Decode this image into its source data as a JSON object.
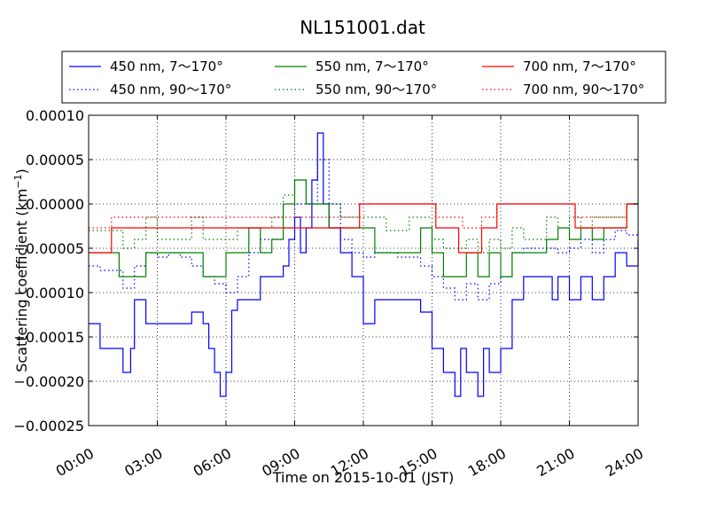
{
  "chart_data": {
    "type": "line",
    "title": "NL151001.dat",
    "xlabel": "Time on 2015-10-01 (JST)",
    "ylabel": "Scattering coefficient (km",
    "ylabel_sup": "−1",
    "ylabel_tail": ")",
    "xlim": [
      "00:00",
      "24:00"
    ],
    "ylim": [
      -0.00025,
      0.0001
    ],
    "grid": true,
    "legend_position": "top",
    "x_ticks": [
      "00:00",
      "03:00",
      "06:00",
      "09:00",
      "12:00",
      "15:00",
      "18:00",
      "21:00",
      "24:00"
    ],
    "y_ticks": [
      "0.00010",
      "0.00005",
      "0.00000",
      "−0.00005",
      "−0.00010",
      "−0.00015",
      "−0.00020",
      "−0.00025"
    ],
    "y_tick_values": [
      0.0001,
      5e-05,
      0.0,
      -5e-05,
      -0.0001,
      -0.00015,
      -0.0002,
      -0.00025
    ],
    "series": [
      {
        "name": "450 nm, 7～170°",
        "color": "#0000ff",
        "style": "solid",
        "points": [
          [
            "00:00",
            -0.000135
          ],
          [
            "00:30",
            -0.000163
          ],
          [
            "01:00",
            -0.000163
          ],
          [
            "01:30",
            -0.00019
          ],
          [
            "01:50",
            -0.000163
          ],
          [
            "02:00",
            -0.000108
          ],
          [
            "02:30",
            -0.000135
          ],
          [
            "03:00",
            -0.000135
          ],
          [
            "03:30",
            -0.000135
          ],
          [
            "04:00",
            -0.000135
          ],
          [
            "04:30",
            -0.000122
          ],
          [
            "05:00",
            -0.000135
          ],
          [
            "05:15",
            -0.000163
          ],
          [
            "05:30",
            -0.00019
          ],
          [
            "05:45",
            -0.000217
          ],
          [
            "06:00",
            -0.00019
          ],
          [
            "06:15",
            -0.00012
          ],
          [
            "06:30",
            -0.000108
          ],
          [
            "07:00",
            -0.000108
          ],
          [
            "07:30",
            -8.2e-05
          ],
          [
            "08:00",
            -8.2e-05
          ],
          [
            "08:30",
            -7e-05
          ],
          [
            "08:45",
            -4e-05
          ],
          [
            "09:00",
            -1.5e-05
          ],
          [
            "09:15",
            -5.5e-05
          ],
          [
            "09:30",
            -2.7e-05
          ],
          [
            "09:45",
            2.7e-05
          ],
          [
            "10:00",
            8e-05
          ],
          [
            "10:15",
            0.0
          ],
          [
            "10:30",
            -2.7e-05
          ],
          [
            "11:00",
            -5.5e-05
          ],
          [
            "11:30",
            -8.2e-05
          ],
          [
            "12:00",
            -0.000135
          ],
          [
            "12:30",
            -0.000108
          ],
          [
            "13:00",
            -0.000108
          ],
          [
            "13:30",
            -0.000108
          ],
          [
            "14:00",
            -0.000108
          ],
          [
            "14:30",
            -0.000122
          ],
          [
            "15:00",
            -0.000163
          ],
          [
            "15:30",
            -0.00019
          ],
          [
            "16:00",
            -0.000217
          ],
          [
            "16:15",
            -0.000163
          ],
          [
            "16:30",
            -0.00019
          ],
          [
            "17:00",
            -0.000217
          ],
          [
            "17:15",
            -0.000163
          ],
          [
            "17:30",
            -0.00019
          ],
          [
            "18:00",
            -0.000163
          ],
          [
            "18:30",
            -0.000108
          ],
          [
            "19:00",
            -8.2e-05
          ],
          [
            "19:30",
            -8.2e-05
          ],
          [
            "20:00",
            -8.2e-05
          ],
          [
            "20:15",
            -0.000108
          ],
          [
            "20:30",
            -8.2e-05
          ],
          [
            "21:00",
            -0.000108
          ],
          [
            "21:30",
            -8.2e-05
          ],
          [
            "22:00",
            -0.000108
          ],
          [
            "22:30",
            -8.2e-05
          ],
          [
            "23:00",
            -5.5e-05
          ],
          [
            "23:30",
            -7e-05
          ],
          [
            "24:00",
            -4e-05
          ]
        ]
      },
      {
        "name": "450 nm, 90～170°",
        "color": "#0000ff",
        "style": "dotted",
        "points": [
          [
            "00:00",
            -7e-05
          ],
          [
            "00:30",
            -7.5e-05
          ],
          [
            "01:00",
            -7.5e-05
          ],
          [
            "01:30",
            -9.5e-05
          ],
          [
            "02:00",
            -7e-05
          ],
          [
            "02:30",
            -5.5e-05
          ],
          [
            "03:00",
            -6e-05
          ],
          [
            "03:30",
            -5.5e-05
          ],
          [
            "04:00",
            -6e-05
          ],
          [
            "04:30",
            -7e-05
          ],
          [
            "05:00",
            -8.2e-05
          ],
          [
            "05:30",
            -9e-05
          ],
          [
            "06:00",
            -0.0001
          ],
          [
            "06:30",
            -8.2e-05
          ],
          [
            "07:00",
            -5.5e-05
          ],
          [
            "07:30",
            -4e-05
          ],
          [
            "08:00",
            -4e-05
          ],
          [
            "08:30",
            -2.7e-05
          ],
          [
            "09:00",
            0.0
          ],
          [
            "09:30",
            0.0
          ],
          [
            "10:00",
            5e-05
          ],
          [
            "10:30",
            0.0
          ],
          [
            "11:00",
            -4e-05
          ],
          [
            "11:30",
            -5.5e-05
          ],
          [
            "12:00",
            -6e-05
          ],
          [
            "12:30",
            -5.5e-05
          ],
          [
            "13:00",
            -5.5e-05
          ],
          [
            "13:30",
            -6e-05
          ],
          [
            "14:00",
            -6e-05
          ],
          [
            "14:30",
            -7e-05
          ],
          [
            "15:00",
            -8.2e-05
          ],
          [
            "15:30",
            -9.5e-05
          ],
          [
            "16:00",
            -0.000108
          ],
          [
            "16:30",
            -9e-05
          ],
          [
            "17:00",
            -0.000108
          ],
          [
            "17:30",
            -9e-05
          ],
          [
            "18:00",
            -8.2e-05
          ],
          [
            "18:30",
            -5.5e-05
          ],
          [
            "19:00",
            -5e-05
          ],
          [
            "19:30",
            -5e-05
          ],
          [
            "20:00",
            -5e-05
          ],
          [
            "20:30",
            -5.5e-05
          ],
          [
            "21:00",
            -5e-05
          ],
          [
            "21:30",
            -4e-05
          ],
          [
            "22:00",
            -5.5e-05
          ],
          [
            "22:30",
            -4e-05
          ],
          [
            "23:00",
            -3e-05
          ],
          [
            "23:30",
            -3.5e-05
          ],
          [
            "24:00",
            -3e-05
          ]
        ]
      },
      {
        "name": "550 nm, 7～170°",
        "color": "#008000",
        "style": "solid",
        "points": [
          [
            "00:00",
            -5.5e-05
          ],
          [
            "01:00",
            -5.5e-05
          ],
          [
            "01:20",
            -8.2e-05
          ],
          [
            "02:00",
            -8.2e-05
          ],
          [
            "02:30",
            -5.5e-05
          ],
          [
            "03:00",
            -5.5e-05
          ],
          [
            "04:00",
            -5.5e-05
          ],
          [
            "05:00",
            -8.2e-05
          ],
          [
            "05:30",
            -8.2e-05
          ],
          [
            "06:00",
            -5.5e-05
          ],
          [
            "06:30",
            -5.5e-05
          ],
          [
            "07:00",
            -2.7e-05
          ],
          [
            "07:30",
            -5.5e-05
          ],
          [
            "08:00",
            -4e-05
          ],
          [
            "08:30",
            0.0
          ],
          [
            "09:00",
            2.7e-05
          ],
          [
            "09:30",
            0.0
          ],
          [
            "10:00",
            0.0
          ],
          [
            "10:30",
            -2.7e-05
          ],
          [
            "11:00",
            -2.7e-05
          ],
          [
            "11:30",
            -2.7e-05
          ],
          [
            "12:00",
            -2.7e-05
          ],
          [
            "12:30",
            -5.5e-05
          ],
          [
            "13:00",
            -5.5e-05
          ],
          [
            "13:30",
            -5.5e-05
          ],
          [
            "14:00",
            -5.5e-05
          ],
          [
            "14:30",
            -2.7e-05
          ],
          [
            "15:00",
            -5.5e-05
          ],
          [
            "15:30",
            -8.2e-05
          ],
          [
            "16:00",
            -8.2e-05
          ],
          [
            "16:30",
            -5.5e-05
          ],
          [
            "17:00",
            -8.2e-05
          ],
          [
            "17:30",
            -5.5e-05
          ],
          [
            "18:00",
            -8.2e-05
          ],
          [
            "18:30",
            -5.5e-05
          ],
          [
            "19:00",
            -5.5e-05
          ],
          [
            "19:30",
            -5.5e-05
          ],
          [
            "20:00",
            -4e-05
          ],
          [
            "20:30",
            -2.7e-05
          ],
          [
            "21:00",
            -4e-05
          ],
          [
            "21:30",
            -2.7e-05
          ],
          [
            "22:00",
            -4e-05
          ],
          [
            "22:30",
            -2.7e-05
          ],
          [
            "23:00",
            -2.7e-05
          ],
          [
            "23:30",
            0.0
          ],
          [
            "24:00",
            0.0
          ]
        ]
      },
      {
        "name": "550 nm, 90～170°",
        "color": "#008000",
        "style": "dotted",
        "points": [
          [
            "00:00",
            -3e-05
          ],
          [
            "01:00",
            -3e-05
          ],
          [
            "01:30",
            -5e-05
          ],
          [
            "02:00",
            -4e-05
          ],
          [
            "02:30",
            -1.5e-05
          ],
          [
            "03:00",
            -4e-05
          ],
          [
            "04:00",
            -4e-05
          ],
          [
            "04:30",
            -1.5e-05
          ],
          [
            "05:00",
            -4e-05
          ],
          [
            "06:00",
            -4e-05
          ],
          [
            "06:30",
            -2.7e-05
          ],
          [
            "07:00",
            -2.7e-05
          ],
          [
            "08:00",
            -1.5e-05
          ],
          [
            "08:30",
            1e-05
          ],
          [
            "09:00",
            2.7e-05
          ],
          [
            "09:30",
            0.0
          ],
          [
            "10:00",
            0.0
          ],
          [
            "11:00",
            -1.5e-05
          ],
          [
            "12:00",
            -1.5e-05
          ],
          [
            "13:00",
            -3e-05
          ],
          [
            "14:00",
            -1.5e-05
          ],
          [
            "15:00",
            -4e-05
          ],
          [
            "15:30",
            -5e-05
          ],
          [
            "16:00",
            -5e-05
          ],
          [
            "16:30",
            -4e-05
          ],
          [
            "17:00",
            -5.5e-05
          ],
          [
            "17:30",
            -4e-05
          ],
          [
            "18:00",
            -5e-05
          ],
          [
            "18:30",
            -2.7e-05
          ],
          [
            "19:00",
            -4e-05
          ],
          [
            "20:00",
            -1.5e-05
          ],
          [
            "20:30",
            -2.7e-05
          ],
          [
            "21:00",
            -1.5e-05
          ],
          [
            "21:30",
            -2.7e-05
          ],
          [
            "22:00",
            -1.5e-05
          ],
          [
            "23:00",
            -1.5e-05
          ],
          [
            "23:30",
            0.0
          ],
          [
            "24:00",
            0.0
          ]
        ]
      },
      {
        "name": "700 nm, 7～170°",
        "color": "#ff0000",
        "style": "solid",
        "points": [
          [
            "00:00",
            -5.5e-05
          ],
          [
            "00:45",
            -5.5e-05
          ],
          [
            "01:00",
            -2.7e-05
          ],
          [
            "02:00",
            -2.7e-05
          ],
          [
            "03:00",
            -2.7e-05
          ],
          [
            "04:00",
            -2.7e-05
          ],
          [
            "05:00",
            -2.7e-05
          ],
          [
            "06:00",
            -2.7e-05
          ],
          [
            "07:00",
            -2.7e-05
          ],
          [
            "08:00",
            -2.7e-05
          ],
          [
            "08:30",
            -2.7e-05
          ],
          [
            "09:00",
            -2.7e-05
          ],
          [
            "09:30",
            -2.7e-05
          ],
          [
            "10:00",
            -2.7e-05
          ],
          [
            "11:00",
            -2.7e-05
          ],
          [
            "11:30",
            -2.7e-05
          ],
          [
            "11:50",
            0.0
          ],
          [
            "12:00",
            0.0
          ],
          [
            "13:00",
            0.0
          ],
          [
            "14:00",
            0.0
          ],
          [
            "15:00",
            0.0
          ],
          [
            "15:10",
            -2.7e-05
          ],
          [
            "16:00",
            -2.7e-05
          ],
          [
            "16:10",
            -5.5e-05
          ],
          [
            "17:00",
            -5.5e-05
          ],
          [
            "17:10",
            -2.7e-05
          ],
          [
            "17:40",
            -2.7e-05
          ],
          [
            "17:50",
            0.0
          ],
          [
            "18:00",
            0.0
          ],
          [
            "19:00",
            0.0
          ],
          [
            "20:00",
            0.0
          ],
          [
            "21:00",
            0.0
          ],
          [
            "21:15",
            -2.7e-05
          ],
          [
            "22:00",
            -2.7e-05
          ],
          [
            "22:30",
            -2.7e-05
          ],
          [
            "23:00",
            -2.7e-05
          ],
          [
            "23:30",
            0.0
          ],
          [
            "24:00",
            0.0
          ]
        ]
      },
      {
        "name": "700 nm, 90～170°",
        "color": "#ff0000",
        "style": "dotted",
        "points": [
          [
            "00:00",
            -2.7e-05
          ],
          [
            "00:30",
            -2.7e-05
          ],
          [
            "01:00",
            -1.5e-05
          ],
          [
            "03:00",
            -1.5e-05
          ],
          [
            "05:00",
            -1.5e-05
          ],
          [
            "07:00",
            -1.5e-05
          ],
          [
            "09:00",
            -1.5e-05
          ],
          [
            "11:00",
            -1.5e-05
          ],
          [
            "11:50",
            0.0
          ],
          [
            "13:00",
            0.0
          ],
          [
            "15:00",
            0.0
          ],
          [
            "15:10",
            -1.5e-05
          ],
          [
            "16:10",
            -1.5e-05
          ],
          [
            "16:20",
            -2.7e-05
          ],
          [
            "17:00",
            -2.7e-05
          ],
          [
            "17:10",
            -1.5e-05
          ],
          [
            "17:50",
            0.0
          ],
          [
            "19:00",
            0.0
          ],
          [
            "21:00",
            0.0
          ],
          [
            "21:15",
            -1.5e-05
          ],
          [
            "23:00",
            -1.5e-05
          ],
          [
            "23:30",
            0.0
          ],
          [
            "24:00",
            0.0
          ]
        ]
      }
    ]
  }
}
